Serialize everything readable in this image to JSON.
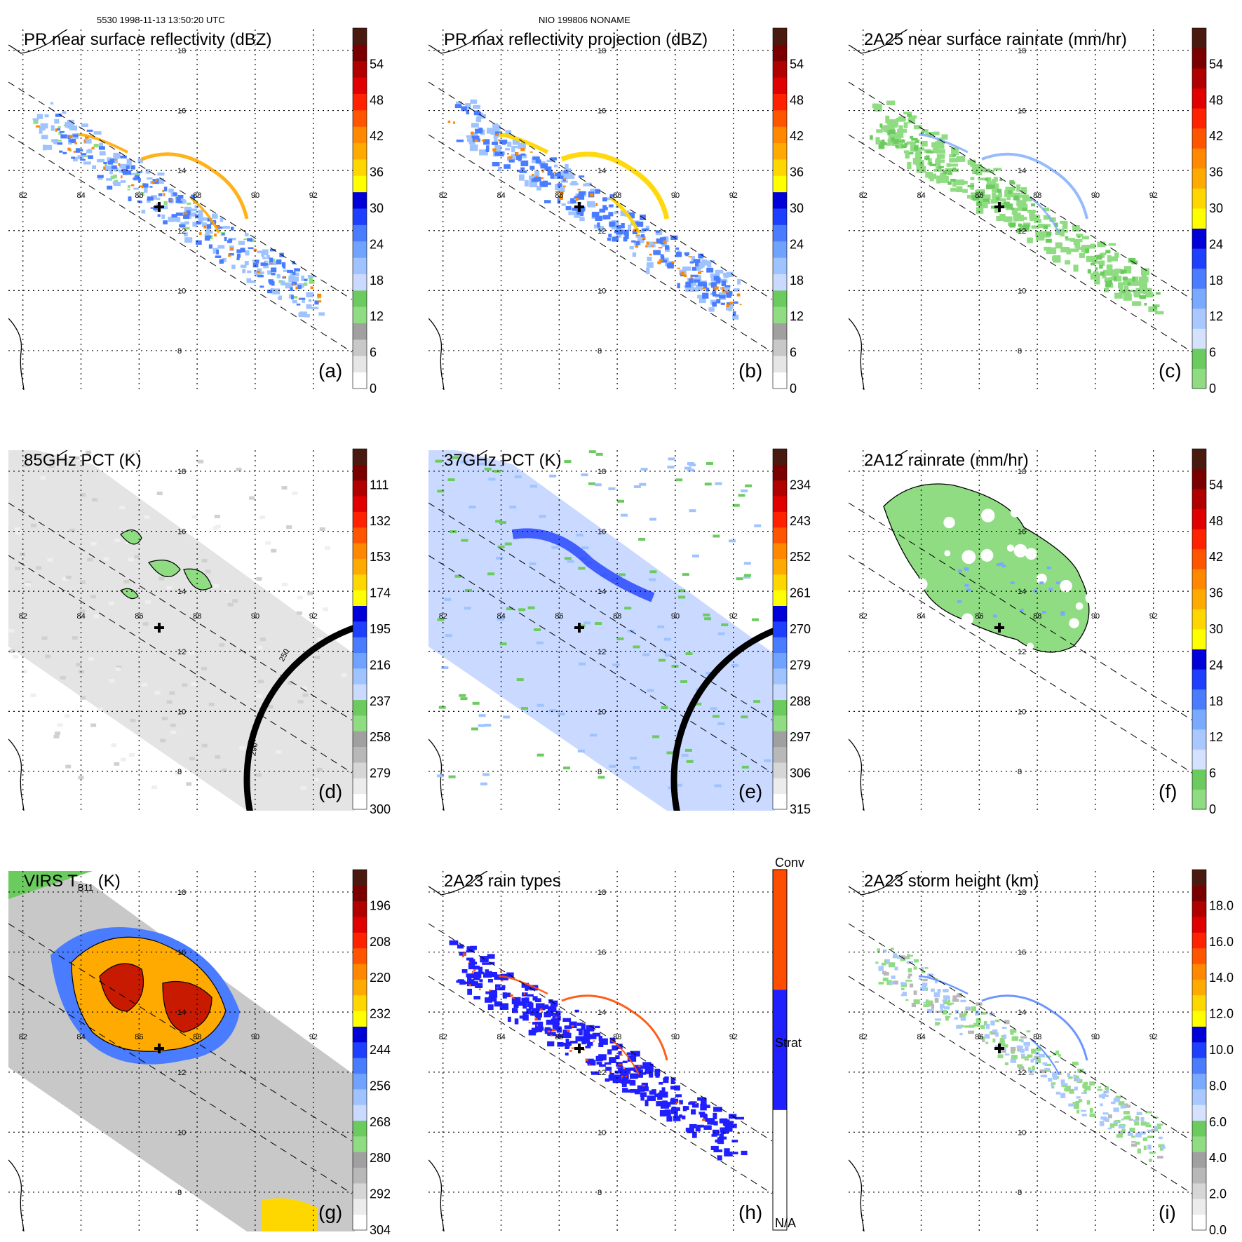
{
  "header": {
    "orbit_time": "5530 1998-11-13 13:50:20 UTC",
    "storm": "NIO 199806 NONAME"
  },
  "grid": {
    "lon_labels": [
      "82",
      "84",
      "86",
      "88",
      "90",
      "92"
    ],
    "lat_labels": [
      "18",
      "16",
      "14",
      "12",
      "10",
      "8"
    ]
  },
  "panels": [
    {
      "id": "a",
      "title": "PR near surface reflectivity (dBZ)",
      "label": "(a)",
      "colorbar": {
        "type": "dbz",
        "ticks": [
          "0",
          "6",
          "12",
          "18",
          "24",
          "30",
          "36",
          "42",
          "48",
          "54"
        ]
      },
      "field": {
        "kind": "swath",
        "style": "pr"
      }
    },
    {
      "id": "b",
      "title": "PR max reflectivity projection (dBZ)",
      "label": "(b)",
      "colorbar": {
        "type": "dbz",
        "ticks": [
          "0",
          "6",
          "12",
          "18",
          "24",
          "30",
          "36",
          "42",
          "48",
          "54"
        ]
      },
      "field": {
        "kind": "swath",
        "style": "prmax"
      }
    },
    {
      "id": "c",
      "title": "2A25 near surface rainrate (mm/hr)",
      "label": "(c)",
      "colorbar": {
        "type": "rain",
        "ticks": [
          "0",
          "6",
          "12",
          "18",
          "24",
          "30",
          "36",
          "42",
          "48",
          "54"
        ]
      },
      "field": {
        "kind": "swath",
        "style": "rain"
      }
    },
    {
      "id": "d",
      "title": "85GHz PCT (K)",
      "label": "(d)",
      "colorbar": {
        "type": "pct",
        "ticks": [
          "300",
          "279",
          "258",
          "237",
          "216",
          "195",
          "174",
          "153",
          "132",
          "111"
        ]
      },
      "field": {
        "kind": "tmi",
        "style": "pct85"
      },
      "contour_labels": [
        "250",
        "290"
      ]
    },
    {
      "id": "e",
      "title": "37GHz PCT (K)",
      "label": "(e)",
      "colorbar": {
        "type": "pct",
        "ticks": [
          "315",
          "306",
          "297",
          "288",
          "279",
          "270",
          "261",
          "252",
          "243",
          "234"
        ]
      },
      "field": {
        "kind": "tmi",
        "style": "pct37"
      }
    },
    {
      "id": "f",
      "title": "2A12 rainrate (mm/hr)",
      "label": "(f)",
      "colorbar": {
        "type": "rain",
        "ticks": [
          "0",
          "6",
          "12",
          "18",
          "24",
          "30",
          "36",
          "42",
          "48",
          "54"
        ]
      },
      "field": {
        "kind": "tmi",
        "style": "rain12"
      }
    },
    {
      "id": "g",
      "title": "VIRS T",
      "title_sub": "B11",
      "title_unit": " (K)",
      "label": "(g)",
      "colorbar": {
        "type": "virs",
        "ticks": [
          "304",
          "292",
          "280",
          "268",
          "256",
          "244",
          "232",
          "220",
          "208",
          "196"
        ]
      },
      "field": {
        "kind": "tmi",
        "style": "virs"
      }
    },
    {
      "id": "h",
      "title": "2A23 rain types",
      "label": "(h)",
      "colorbar": {
        "type": "types",
        "ticks": [
          "N/A",
          "Strat",
          "Conv"
        ]
      },
      "field": {
        "kind": "swath",
        "style": "types"
      }
    },
    {
      "id": "i",
      "title": "2A23 storm height (km)",
      "label": "(i)",
      "colorbar": {
        "type": "height",
        "ticks": [
          "0.0",
          "2.0",
          "4.0",
          "6.0",
          "8.0",
          "10.0",
          "12.0",
          "14.0",
          "16.0",
          "18.0"
        ]
      },
      "field": {
        "kind": "swath",
        "style": "height"
      }
    }
  ],
  "palettes": {
    "dbz": [
      "#ffffff",
      "#e6e6e6",
      "#c8c8c8",
      "#a0a0a0",
      "#8fdc83",
      "#6ccb5f",
      "#c9d9ff",
      "#9ec3ff",
      "#6fa3ff",
      "#4a7cff",
      "#1f3fff",
      "#0000d8",
      "#ffff00",
      "#ffd700",
      "#ffaa00",
      "#ff8800",
      "#ff5500",
      "#ff2200",
      "#e00000",
      "#b00000",
      "#7a0000",
      "#4a1a10"
    ],
    "rain": [
      "#8fdc83",
      "#6ccb5f",
      "#d4e2ff",
      "#a9c8ff",
      "#7aaaff",
      "#4a7cff",
      "#1f3fff",
      "#0000d8",
      "#ffff00",
      "#ffd700",
      "#ffaa00",
      "#ff8800",
      "#ff5500",
      "#ff2200",
      "#e00000",
      "#b00000",
      "#7a0000",
      "#4a1a10"
    ],
    "pct": [
      "#ffffff",
      "#ececec",
      "#d6d6d6",
      "#b8b8b8",
      "#a0a0a0",
      "#8fdc83",
      "#6ccb5f",
      "#c9d9ff",
      "#9ec3ff",
      "#6fa3ff",
      "#4a7cff",
      "#1f3fff",
      "#0000d8",
      "#ffff00",
      "#ffd700",
      "#ffaa00",
      "#ff8800",
      "#ff5500",
      "#ff2200",
      "#e00000",
      "#b00000",
      "#7a0000",
      "#4a1a10"
    ],
    "virs": [
      "#ffffff",
      "#ececec",
      "#d6d6d6",
      "#b8b8b8",
      "#a0a0a0",
      "#8fdc83",
      "#6ccb5f",
      "#c9d9ff",
      "#9ec3ff",
      "#6fa3ff",
      "#4a7cff",
      "#1f3fff",
      "#0000d8",
      "#ffff00",
      "#ffd700",
      "#ffaa00",
      "#ff8800",
      "#ff5500",
      "#ff2200",
      "#e00000",
      "#b00000",
      "#7a0000",
      "#4a1a10"
    ],
    "height": [
      "#ffffff",
      "#ececec",
      "#d6d6d6",
      "#b8b8b8",
      "#a0a0a0",
      "#8fdc83",
      "#6ccb5f",
      "#d4e2ff",
      "#a9c8ff",
      "#7aaaff",
      "#4a7cff",
      "#1f3fff",
      "#0000d8",
      "#ffff00",
      "#ffd700",
      "#ffaa00",
      "#ff8800",
      "#ff5500",
      "#ff2200",
      "#e00000",
      "#b00000",
      "#7a0000",
      "#4a1a10"
    ],
    "types": [
      "#ffffff",
      "#1f1fff",
      "#ff4d00"
    ]
  }
}
